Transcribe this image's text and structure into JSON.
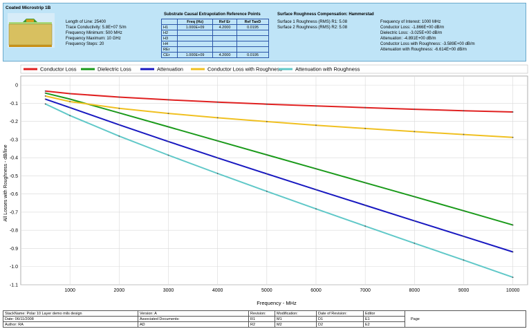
{
  "header": {
    "title": "Coated Microstrip 1B",
    "params": [
      "Length of Line: 25400",
      "Trace Conductivity: 5.8E+07 S/m",
      "Frequency Minimum: 500 MHz",
      "Frequency Maximum: 10 GHz",
      "Frequency Steps: 20"
    ],
    "ref_title": "Substrate Causal Extrapolation Reference Points",
    "ref_columns": [
      "",
      "Freq (Hz)",
      "Ref Er",
      "Ref TanD"
    ],
    "ref_rows": [
      [
        "H1",
        "1.000E+09",
        "4.2000",
        "0.0195"
      ],
      [
        "H2",
        "",
        "",
        ""
      ],
      [
        "H3",
        "",
        "",
        ""
      ],
      [
        "H4",
        "",
        "",
        ""
      ],
      [
        "REr",
        "",
        "",
        ""
      ],
      [
        "CEr",
        "1.000E+09",
        "4.2000",
        "0.0195"
      ]
    ],
    "rough_title": "Surface Roughness Compensation: Hammerstad",
    "rough_params": [
      "Surface 1 Roughness (RMS) R1: 5.08",
      "Surface 2 Roughness (RMS) R2: 5.08"
    ],
    "results": [
      "Frequency of Interest: 1000 MHz",
      "Conductor Loss: -1.866E+00 dB/m",
      "Dielectric Loss: -3.025E+00 dB/m",
      "Attenuation: -4.891E+00 dB/m",
      "Conductor Loss with Roughness: -3.589E+00 dB/m",
      "Attenuation with Roughness: -6.614E+00 dB/m"
    ]
  },
  "chart_data": {
    "type": "line",
    "title": "",
    "xlabel": "Frequency - MHz",
    "ylabel": "All Losses with Roughness - dB/line",
    "xlim": [
      0,
      10300
    ],
    "ylim": [
      -1.1,
      0.05
    ],
    "xticks": [
      1000,
      2000,
      3000,
      4000,
      5000,
      6000,
      7000,
      8000,
      9000,
      10000
    ],
    "yticks": [
      0,
      -0.1,
      -0.2,
      -0.3,
      -0.4,
      -0.5,
      -0.6,
      -0.7,
      -0.8,
      -0.9,
      -1.0,
      -1.1
    ],
    "ytick_labels": [
      "0",
      "-0.1",
      "-0.2",
      "-0.3",
      "-0.4",
      "-0.5",
      "-0.6",
      "-0.7",
      "-0.8",
      "-0.9",
      "-1.0",
      "-1.1"
    ],
    "grid": true,
    "legend_position": "top",
    "x": [
      500,
      1000,
      2000,
      3000,
      4000,
      5000,
      6000,
      7000,
      8000,
      9000,
      10000
    ],
    "series": [
      {
        "name": "Conductor Loss",
        "color": "#e02020",
        "values": [
          -0.033,
          -0.047,
          -0.066,
          -0.081,
          -0.094,
          -0.105,
          -0.115,
          -0.124,
          -0.133,
          -0.141,
          -0.148
        ]
      },
      {
        "name": "Dielectric Loss",
        "color": "#1a9a1a",
        "values": [
          -0.044,
          -0.077,
          -0.153,
          -0.23,
          -0.307,
          -0.384,
          -0.461,
          -0.538,
          -0.615,
          -0.692,
          -0.771
        ]
      },
      {
        "name": "Attenuation",
        "color": "#1818c0",
        "values": [
          -0.077,
          -0.124,
          -0.219,
          -0.311,
          -0.401,
          -0.489,
          -0.576,
          -0.662,
          -0.748,
          -0.833,
          -0.919
        ]
      },
      {
        "name": "Conductor Loss with Roughness",
        "color": "#f0c020",
        "values": [
          -0.06,
          -0.091,
          -0.128,
          -0.156,
          -0.18,
          -0.201,
          -0.221,
          -0.239,
          -0.256,
          -0.272,
          -0.288
        ]
      },
      {
        "name": "Attenuation with Roughness",
        "color": "#60c8c8",
        "values": [
          -0.104,
          -0.168,
          -0.281,
          -0.386,
          -0.487,
          -0.585,
          -0.682,
          -0.777,
          -0.871,
          -0.964,
          -1.059
        ]
      }
    ]
  },
  "footer": {
    "rows": [
      [
        "StackName: Polar 10 Layer demo mils design",
        "Version: A",
        "Revision:",
        "Modification:",
        "Date of Revision:",
        "Editor"
      ],
      [
        "Date: 06/11/2008",
        "Associated Documents:",
        "R1",
        "M1",
        "D1",
        "E1"
      ],
      [
        "Author: RA",
        "AD",
        "R2",
        "M2",
        "D2",
        "E2"
      ]
    ],
    "page_label": "Page"
  }
}
